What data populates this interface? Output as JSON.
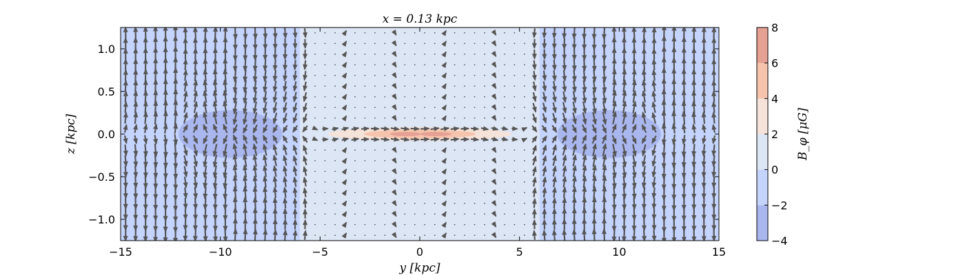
{
  "chart_data": {
    "type": "heatmap",
    "title": "x = 0.13 kpc",
    "xlabel": "y [kpc]",
    "ylabel": "z [kpc]",
    "xlim": [
      -15,
      15
    ],
    "ylim": [
      -1.25,
      1.25
    ],
    "x_ticks": [
      "−15",
      "−10",
      "−5",
      "0",
      "5",
      "10",
      "15"
    ],
    "x_tick_values": [
      -15,
      -10,
      -5,
      0,
      5,
      10,
      15
    ],
    "y_ticks": [
      "1.0",
      "0.5",
      "0.0",
      "−0.5",
      "−1.0"
    ],
    "y_tick_values": [
      1.0,
      0.5,
      0.0,
      -0.5,
      -1.0
    ],
    "colorbar": {
      "label": "B_φ [μG]",
      "ticks": [
        "8",
        "6",
        "4",
        "2",
        "0",
        "−2",
        "−4"
      ],
      "tick_values": [
        8,
        6,
        4,
        2,
        0,
        -2,
        -4
      ],
      "levels": [
        {
          "range": [
            -4,
            -2
          ],
          "color": "#a9b7ee"
        },
        {
          "range": [
            -2,
            0
          ],
          "color": "#c5d4fc"
        },
        {
          "range": [
            0,
            2
          ],
          "color": "#dde6f5"
        },
        {
          "range": [
            2,
            4
          ],
          "color": "#f5e2d8"
        },
        {
          "range": [
            4,
            6
          ],
          "color": "#f6c3ac"
        },
        {
          "range": [
            6,
            8
          ],
          "color": "#e5a193"
        }
      ]
    },
    "regions": [
      {
        "y": [
          -15,
          -6
        ],
        "z": [
          -1.25,
          1.25
        ],
        "level": "−2 to 0"
      },
      {
        "y": [
          -6,
          6
        ],
        "z": [
          -1.25,
          1.25
        ],
        "level": "0 to 2"
      },
      {
        "y": [
          6,
          15
        ],
        "z": [
          -1.25,
          1.25
        ],
        "level": "−2 to 0"
      },
      {
        "y_center": -9.5,
        "z_center": 0.0,
        "y_halfwidth": 2.6,
        "z_halfwidth": 0.28,
        "level": "−4 to −2"
      },
      {
        "y_center": 9.5,
        "z_center": 0.0,
        "y_halfwidth": 2.6,
        "z_halfwidth": 0.28,
        "level": "−4 to −2"
      },
      {
        "y_center": 0.0,
        "z_center": 0.0,
        "y_halfwidth": 4.6,
        "z_halfwidth": 0.08,
        "level": "2 to 4"
      },
      {
        "y_center": 0.0,
        "z_center": 0.0,
        "y_halfwidth": 2.8,
        "z_halfwidth": 0.05,
        "level": "4 to 6"
      },
      {
        "y_center": -0.7,
        "z_center": 0.0,
        "y_halfwidth": 0.8,
        "z_halfwidth": 0.025,
        "level": "6 to 8"
      },
      {
        "y_center": 0.8,
        "z_center": 0.0,
        "y_halfwidth": 0.8,
        "z_halfwidth": 0.025,
        "level": "6 to 8"
      }
    ],
    "vector_field": {
      "description": "quiver of (B_y, B_z)",
      "arrow_color": "#555555",
      "y_step": 0.5,
      "z_step": 0.125
    }
  }
}
